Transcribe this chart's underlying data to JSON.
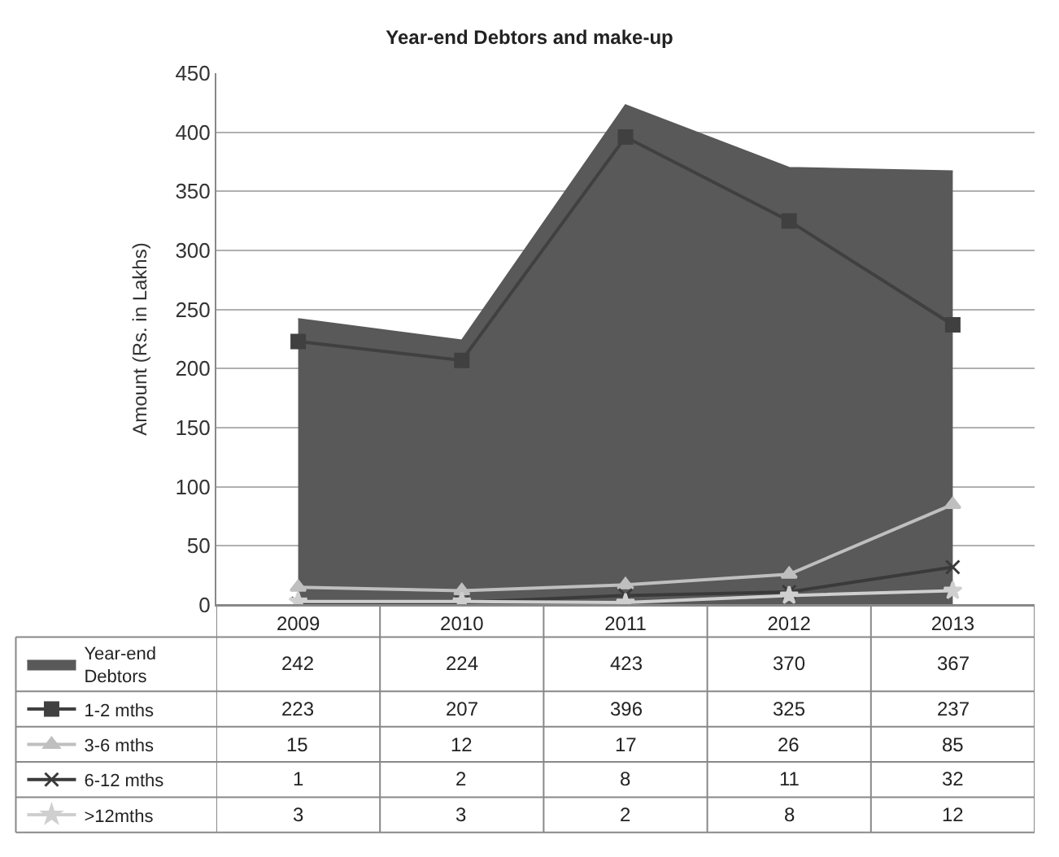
{
  "chart_data": {
    "type": "line",
    "title": "Year-end Debtors and make-up",
    "ylabel": "Amount (Rs. in Lakhs)",
    "categories": [
      "2009",
      "2010",
      "2011",
      "2012",
      "2013"
    ],
    "ylim": [
      0,
      450
    ],
    "yticks": [
      0,
      50,
      100,
      150,
      200,
      250,
      300,
      350,
      400,
      450
    ],
    "grid": "y",
    "legend": "bottom left",
    "data_labels": true,
    "series": [
      {
        "name": "Year-end Debtors",
        "type": "area",
        "color": "#595959",
        "values": [
          242,
          224,
          423,
          370,
          367
        ]
      },
      {
        "name": "1-2 mths",
        "marker": "square",
        "color": "#404040",
        "values": [
          223,
          207,
          396,
          325,
          237
        ]
      },
      {
        "name": "3-6 mths",
        "marker": "triangle",
        "color": "#bfbfbf",
        "values": [
          15,
          12,
          17,
          26,
          85
        ]
      },
      {
        "name": "6-12 mths",
        "marker": "cross",
        "color": "#3a3a3a",
        "values": [
          1,
          2,
          8,
          11,
          32
        ]
      },
      {
        "name": ">12mths",
        "marker": "star",
        "color": "#cfcfcf",
        "values": [
          3,
          3,
          2,
          8,
          12
        ]
      }
    ]
  }
}
